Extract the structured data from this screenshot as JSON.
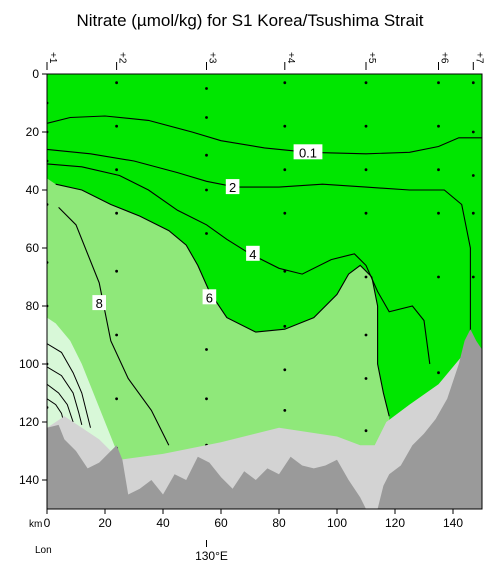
{
  "chart_data": {
    "type": "contour",
    "title": "Nitrate (µmol/kg) for S1 Korea/Tsushima Strait",
    "xlabel": "km",
    "lon_label": "Lon",
    "lon_tick": "130°E",
    "lon_tick_km": 55,
    "xlim": [
      0,
      150
    ],
    "ylim": [
      0,
      150
    ],
    "y_inverted": true,
    "x_ticks": [
      0,
      20,
      40,
      60,
      80,
      100,
      120,
      140
    ],
    "y_ticks": [
      0,
      20,
      40,
      60,
      80,
      100,
      120,
      140
    ],
    "stations": [
      {
        "label": "1",
        "km": 0
      },
      {
        "label": "2",
        "km": 24
      },
      {
        "label": "3",
        "km": 55
      },
      {
        "label": "4",
        "km": 82
      },
      {
        "label": "5",
        "km": 110
      },
      {
        "label": "6",
        "km": 135
      },
      {
        "label": "7",
        "km": 147
      }
    ],
    "sample_points": [
      {
        "km": 0,
        "depths": [
          10,
          20,
          30,
          45,
          65,
          80,
          100,
          115
        ]
      },
      {
        "km": 24,
        "depths": [
          3,
          18,
          33,
          48,
          68,
          90,
          112,
          129
        ]
      },
      {
        "km": 55,
        "depths": [
          5,
          15,
          28,
          40,
          55,
          75,
          95,
          112,
          128
        ]
      },
      {
        "km": 82,
        "depths": [
          3,
          18,
          33,
          48,
          68,
          87,
          102,
          116
        ]
      },
      {
        "km": 110,
        "depths": [
          3,
          18,
          33,
          48,
          70,
          90,
          105,
          123
        ]
      },
      {
        "km": 135,
        "depths": [
          3,
          18,
          33,
          48,
          70,
          103
        ]
      },
      {
        "km": 147,
        "depths": [
          3,
          20,
          35,
          48,
          70,
          100
        ]
      }
    ],
    "fill_levels": [
      {
        "range": "< 6",
        "color": "#00e600"
      },
      {
        "range": "6 - 10",
        "color": "#8fe87a"
      },
      {
        "range": "> 10",
        "color": "#d8f8d8"
      }
    ],
    "contour_labels": [
      {
        "text": "0.1",
        "km": 90,
        "depth": 27
      },
      {
        "text": "2",
        "km": 64,
        "depth": 39
      },
      {
        "text": "4",
        "km": 71,
        "depth": 62
      },
      {
        "text": "6",
        "km": 56,
        "depth": 77
      },
      {
        "text": "8",
        "km": 18,
        "depth": 79
      }
    ],
    "contours": [
      {
        "level": "0.1",
        "points": [
          [
            0,
            17
          ],
          [
            8,
            15
          ],
          [
            20,
            14.5
          ],
          [
            35,
            16
          ],
          [
            50,
            20
          ],
          [
            60,
            23
          ],
          [
            75,
            25.5
          ],
          [
            90,
            27
          ],
          [
            110,
            27.5
          ],
          [
            125,
            27
          ],
          [
            135,
            25
          ],
          [
            142,
            22
          ],
          [
            150,
            22
          ]
        ]
      },
      {
        "level": "2",
        "points": [
          [
            0,
            26
          ],
          [
            15,
            27.5
          ],
          [
            30,
            30
          ],
          [
            45,
            34
          ],
          [
            55,
            37
          ],
          [
            65,
            39
          ],
          [
            80,
            39
          ],
          [
            95,
            38
          ],
          [
            110,
            39
          ],
          [
            125,
            40
          ],
          [
            137,
            40
          ],
          [
            143,
            45
          ],
          [
            146,
            60
          ],
          [
            146,
            80
          ],
          [
            146,
            96
          ]
        ]
      },
      {
        "level": "4",
        "points": [
          [
            0,
            31
          ],
          [
            12,
            32
          ],
          [
            25,
            35
          ],
          [
            35,
            40
          ],
          [
            45,
            47
          ],
          [
            55,
            52
          ],
          [
            62,
            57
          ],
          [
            70,
            62
          ],
          [
            80,
            67
          ],
          [
            88,
            69
          ],
          [
            98,
            64
          ],
          [
            106,
            62
          ],
          [
            110,
            66
          ],
          [
            114,
            75
          ],
          [
            118,
            82
          ],
          [
            126,
            80
          ],
          [
            130,
            85
          ],
          [
            132,
            100
          ]
        ]
      },
      {
        "level": "6",
        "points": [
          [
            3,
            38
          ],
          [
            12,
            40
          ],
          [
            22,
            45
          ],
          [
            32,
            49
          ],
          [
            42,
            54
          ],
          [
            48,
            59
          ],
          [
            52,
            66
          ],
          [
            56,
            75
          ],
          [
            62,
            84
          ],
          [
            72,
            89
          ],
          [
            82,
            88
          ],
          [
            92,
            84
          ],
          [
            100,
            76
          ],
          [
            104,
            69
          ],
          [
            108,
            66
          ],
          [
            112,
            70
          ],
          [
            114,
            80
          ],
          [
            114,
            90
          ],
          [
            114,
            100
          ],
          [
            116,
            110
          ],
          [
            118,
            118
          ]
        ]
      },
      {
        "level": "8",
        "points": [
          [
            4,
            46
          ],
          [
            10,
            52
          ],
          [
            14,
            62
          ],
          [
            18,
            72
          ],
          [
            20,
            82
          ],
          [
            22,
            92
          ],
          [
            28,
            105
          ],
          [
            36,
            116
          ],
          [
            42,
            128
          ]
        ]
      }
    ],
    "light_region": [
      [
        0,
        84
      ],
      [
        3,
        86
      ],
      [
        8,
        92
      ],
      [
        12,
        100
      ],
      [
        16,
        110
      ],
      [
        20,
        120
      ],
      [
        24,
        130
      ],
      [
        26,
        134
      ],
      [
        0,
        134
      ]
    ],
    "light_contours": [
      [
        [
          0,
          93
        ],
        [
          5,
          96
        ],
        [
          9,
          103
        ],
        [
          12,
          110
        ],
        [
          14,
          118
        ],
        [
          15,
          122
        ]
      ],
      [
        [
          0,
          101
        ],
        [
          5,
          104
        ],
        [
          9,
          110
        ],
        [
          11,
          117
        ],
        [
          12,
          121
        ]
      ],
      [
        [
          0,
          107
        ],
        [
          4,
          110
        ],
        [
          7,
          114
        ],
        [
          9,
          120
        ]
      ],
      [
        [
          0,
          112
        ],
        [
          3,
          114
        ],
        [
          5,
          117
        ],
        [
          6,
          121
        ]
      ]
    ],
    "seafloor_light": [
      [
        0,
        150
      ],
      [
        0,
        122
      ],
      [
        6,
        118
      ],
      [
        12,
        122
      ],
      [
        18,
        126
      ],
      [
        25,
        133
      ],
      [
        40,
        131
      ],
      [
        60,
        127
      ],
      [
        80,
        122
      ],
      [
        100,
        125
      ],
      [
        108,
        128
      ],
      [
        113,
        128
      ],
      [
        117,
        120
      ],
      [
        125,
        114
      ],
      [
        135,
        107
      ],
      [
        140,
        101
      ],
      [
        145,
        95
      ],
      [
        150,
        100
      ],
      [
        150,
        150
      ]
    ],
    "seafloor_dark": [
      [
        0,
        150
      ],
      [
        0,
        122
      ],
      [
        4,
        121
      ],
      [
        6,
        126
      ],
      [
        10,
        130
      ],
      [
        14,
        136
      ],
      [
        18,
        134
      ],
      [
        22,
        130
      ],
      [
        24,
        128
      ],
      [
        26,
        133
      ],
      [
        28,
        145
      ],
      [
        32,
        143
      ],
      [
        36,
        140
      ],
      [
        40,
        145
      ],
      [
        44,
        138
      ],
      [
        48,
        140
      ],
      [
        52,
        132
      ],
      [
        56,
        134
      ],
      [
        60,
        139
      ],
      [
        64,
        143
      ],
      [
        68,
        137
      ],
      [
        72,
        140
      ],
      [
        76,
        136
      ],
      [
        80,
        138
      ],
      [
        84,
        132
      ],
      [
        88,
        135
      ],
      [
        92,
        136
      ],
      [
        96,
        135
      ],
      [
        100,
        133
      ],
      [
        104,
        140
      ],
      [
        108,
        146
      ],
      [
        110,
        150
      ],
      [
        114,
        150
      ],
      [
        116,
        142
      ],
      [
        118,
        138
      ],
      [
        122,
        135
      ],
      [
        126,
        128
      ],
      [
        130,
        124
      ],
      [
        134,
        119
      ],
      [
        138,
        112
      ],
      [
        142,
        100
      ],
      [
        144,
        92
      ],
      [
        146,
        88
      ],
      [
        148,
        92
      ],
      [
        150,
        95
      ],
      [
        150,
        150
      ]
    ]
  }
}
